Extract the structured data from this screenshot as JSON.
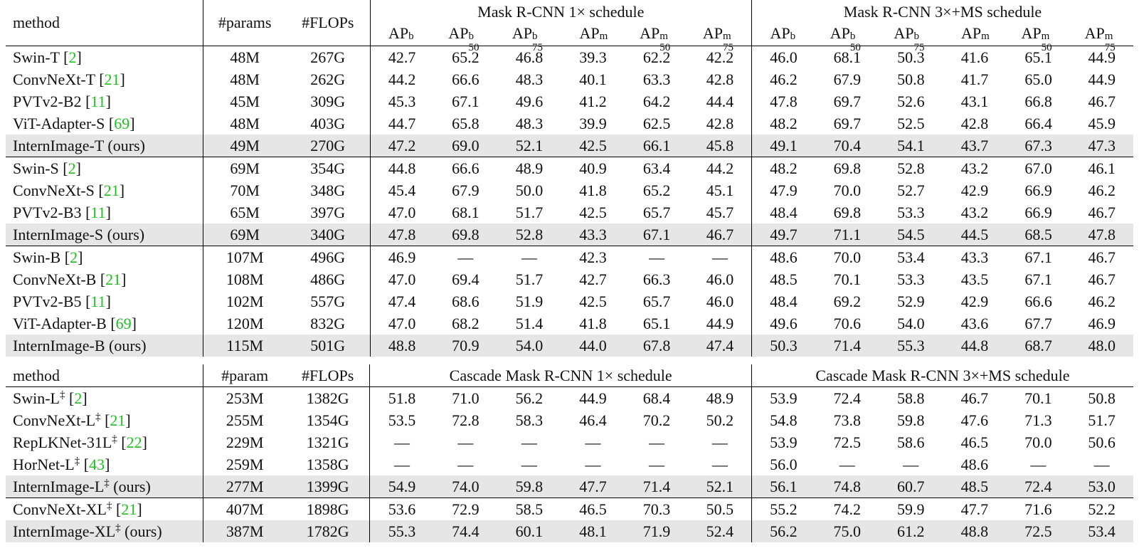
{
  "table1": {
    "headers": {
      "method": "method",
      "params": "#params",
      "flops": "#FLOPs",
      "group1": "Mask R-CNN 1× schedule",
      "group2": "Mask R-CNN 3×+MS schedule",
      "metrics": [
        {
          "base": "AP",
          "sup": "b",
          "sub": ""
        },
        {
          "base": "AP",
          "sup": "b",
          "sub": "50"
        },
        {
          "base": "AP",
          "sup": "b",
          "sub": "75"
        },
        {
          "base": "AP",
          "sup": "m",
          "sub": ""
        },
        {
          "base": "AP",
          "sup": "m",
          "sub": "50"
        },
        {
          "base": "AP",
          "sup": "m",
          "sub": "75"
        }
      ]
    },
    "rows": [
      {
        "name": "Swin-T",
        "ref": "2",
        "dagger": "",
        "ours": "",
        "params": "48M",
        "flops": "267G",
        "v": [
          "42.7",
          "65.2",
          "46.8",
          "39.3",
          "62.2",
          "42.2",
          "46.0",
          "68.1",
          "50.3",
          "41.6",
          "65.1",
          "44.9"
        ],
        "hl": false,
        "sep": false
      },
      {
        "name": "ConvNeXt-T",
        "ref": "21",
        "dagger": "",
        "ours": "",
        "params": "48M",
        "flops": "262G",
        "v": [
          "44.2",
          "66.6",
          "48.3",
          "40.1",
          "63.3",
          "42.8",
          "46.2",
          "67.9",
          "50.8",
          "41.7",
          "65.0",
          "44.9"
        ],
        "hl": false,
        "sep": false
      },
      {
        "name": "PVTv2-B2",
        "ref": "11",
        "dagger": "",
        "ours": "",
        "params": "45M",
        "flops": "309G",
        "v": [
          "45.3",
          "67.1",
          "49.6",
          "41.2",
          "64.2",
          "44.4",
          "47.8",
          "69.7",
          "52.6",
          "43.1",
          "66.8",
          "46.7"
        ],
        "hl": false,
        "sep": false
      },
      {
        "name": "ViT-Adapter-S",
        "ref": "69",
        "dagger": "",
        "ours": "",
        "params": "48M",
        "flops": "403G",
        "v": [
          "44.7",
          "65.8",
          "48.3",
          "39.9",
          "62.5",
          "42.8",
          "48.2",
          "69.7",
          "52.5",
          "42.8",
          "66.4",
          "45.9"
        ],
        "hl": false,
        "sep": false
      },
      {
        "name": "InternImage-T",
        "ref": "",
        "dagger": "",
        "ours": "(ours)",
        "params": "49M",
        "flops": "270G",
        "v": [
          "47.2",
          "69.0",
          "52.1",
          "42.5",
          "66.1",
          "45.8",
          "49.1",
          "70.4",
          "54.1",
          "43.7",
          "67.3",
          "47.3"
        ],
        "hl": true,
        "sep": false
      },
      {
        "name": "Swin-S",
        "ref": "2",
        "dagger": "",
        "ours": "",
        "params": "69M",
        "flops": "354G",
        "v": [
          "44.8",
          "66.6",
          "48.9",
          "40.9",
          "63.4",
          "44.2",
          "48.2",
          "69.8",
          "52.8",
          "43.2",
          "67.0",
          "46.1"
        ],
        "hl": false,
        "sep": true
      },
      {
        "name": "ConvNeXt-S",
        "ref": "21",
        "dagger": "",
        "ours": "",
        "params": "70M",
        "flops": "348G",
        "v": [
          "45.4",
          "67.9",
          "50.0",
          "41.8",
          "65.2",
          "45.1",
          "47.9",
          "70.0",
          "52.7",
          "42.9",
          "66.9",
          "46.2"
        ],
        "hl": false,
        "sep": false
      },
      {
        "name": "PVTv2-B3",
        "ref": "11",
        "dagger": "",
        "ours": "",
        "params": "65M",
        "flops": "397G",
        "v": [
          "47.0",
          "68.1",
          "51.7",
          "42.5",
          "65.7",
          "45.7",
          "48.4",
          "69.8",
          "53.3",
          "43.2",
          "66.9",
          "46.7"
        ],
        "hl": false,
        "sep": false
      },
      {
        "name": "InternImage-S",
        "ref": "",
        "dagger": "",
        "ours": "(ours)",
        "params": "69M",
        "flops": "340G",
        "v": [
          "47.8",
          "69.8",
          "52.8",
          "43.3",
          "67.1",
          "46.7",
          "49.7",
          "71.1",
          "54.5",
          "44.5",
          "68.5",
          "47.8"
        ],
        "hl": true,
        "sep": false
      },
      {
        "name": "Swin-B",
        "ref": "2",
        "dagger": "",
        "ours": "",
        "params": "107M",
        "flops": "496G",
        "v": [
          "46.9",
          "—",
          "—",
          "42.3",
          "—",
          "—",
          "48.6",
          "70.0",
          "53.4",
          "43.3",
          "67.1",
          "46.7"
        ],
        "hl": false,
        "sep": true
      },
      {
        "name": "ConvNeXt-B",
        "ref": "21",
        "dagger": "",
        "ours": "",
        "params": "108M",
        "flops": "486G",
        "v": [
          "47.0",
          "69.4",
          "51.7",
          "42.7",
          "66.3",
          "46.0",
          "48.5",
          "70.1",
          "53.3",
          "43.5",
          "67.1",
          "46.7"
        ],
        "hl": false,
        "sep": false
      },
      {
        "name": "PVTv2-B5",
        "ref": "11",
        "dagger": "",
        "ours": "",
        "params": "102M",
        "flops": "557G",
        "v": [
          "47.4",
          "68.6",
          "51.9",
          "42.5",
          "65.7",
          "46.0",
          "48.4",
          "69.2",
          "52.9",
          "42.9",
          "66.6",
          "46.2"
        ],
        "hl": false,
        "sep": false
      },
      {
        "name": "ViT-Adapter-B",
        "ref": "69",
        "dagger": "",
        "ours": "",
        "params": "120M",
        "flops": "832G",
        "v": [
          "47.0",
          "68.2",
          "51.4",
          "41.8",
          "65.1",
          "44.9",
          "49.6",
          "70.6",
          "54.0",
          "43.6",
          "67.7",
          "46.9"
        ],
        "hl": false,
        "sep": false
      },
      {
        "name": "InternImage-B",
        "ref": "",
        "dagger": "",
        "ours": "(ours)",
        "params": "115M",
        "flops": "501G",
        "v": [
          "48.8",
          "70.9",
          "54.0",
          "44.0",
          "67.8",
          "47.4",
          "50.3",
          "71.4",
          "55.3",
          "44.8",
          "68.7",
          "48.0"
        ],
        "hl": true,
        "sep": false
      }
    ]
  },
  "table2": {
    "headers": {
      "method": "method",
      "params": "#param",
      "flops": "#FLOPs",
      "group1": "Cascade Mask R-CNN 1× schedule",
      "group2": "Cascade Mask R-CNN 3×+MS schedule"
    },
    "rows": [
      {
        "name": "Swin-L",
        "ref": "2",
        "dagger": "‡",
        "ours": "",
        "params": "253M",
        "flops": "1382G",
        "v": [
          "51.8",
          "71.0",
          "56.2",
          "44.9",
          "68.4",
          "48.9",
          "53.9",
          "72.4",
          "58.8",
          "46.7",
          "70.1",
          "50.8"
        ],
        "hl": false,
        "sep": false
      },
      {
        "name": "ConvNeXt-L",
        "ref": "21",
        "dagger": "‡",
        "ours": "",
        "params": "255M",
        "flops": "1354G",
        "v": [
          "53.5",
          "72.8",
          "58.3",
          "46.4",
          "70.2",
          "50.2",
          "54.8",
          "73.8",
          "59.8",
          "47.6",
          "71.3",
          "51.7"
        ],
        "hl": false,
        "sep": false
      },
      {
        "name": "RepLKNet-31L",
        "ref": "22",
        "dagger": "‡",
        "ours": "",
        "params": "229M",
        "flops": "1321G",
        "v": [
          "—",
          "—",
          "—",
          "—",
          "—",
          "—",
          "53.9",
          "72.5",
          "58.6",
          "46.5",
          "70.0",
          "50.6"
        ],
        "hl": false,
        "sep": false
      },
      {
        "name": "HorNet-L",
        "ref": "43",
        "dagger": "‡",
        "ours": "",
        "params": "259M",
        "flops": "1358G",
        "v": [
          "—",
          "—",
          "—",
          "—",
          "—",
          "—",
          "56.0",
          "—",
          "—",
          "48.6",
          "—",
          "—"
        ],
        "hl": false,
        "sep": false
      },
      {
        "name": "InternImage-L",
        "ref": "",
        "dagger": "‡",
        "ours": "(ours)",
        "params": "277M",
        "flops": "1399G",
        "v": [
          "54.9",
          "74.0",
          "59.8",
          "47.7",
          "71.4",
          "52.1",
          "56.1",
          "74.8",
          "60.7",
          "48.5",
          "72.4",
          "53.0"
        ],
        "hl": true,
        "sep": false
      },
      {
        "name": "ConvNeXt-XL",
        "ref": "21",
        "dagger": "‡",
        "ours": "",
        "params": "407M",
        "flops": "1898G",
        "v": [
          "53.6",
          "72.9",
          "58.5",
          "46.5",
          "70.3",
          "50.5",
          "55.2",
          "74.2",
          "59.9",
          "47.7",
          "71.6",
          "52.2"
        ],
        "hl": false,
        "sep": true
      },
      {
        "name": "InternImage-XL",
        "ref": "",
        "dagger": "‡",
        "ours": "(ours)",
        "params": "387M",
        "flops": "1782G",
        "v": [
          "55.3",
          "74.4",
          "60.1",
          "48.1",
          "71.9",
          "52.4",
          "56.2",
          "75.0",
          "61.2",
          "48.8",
          "72.5",
          "53.4"
        ],
        "hl": true,
        "sep": false
      }
    ]
  }
}
